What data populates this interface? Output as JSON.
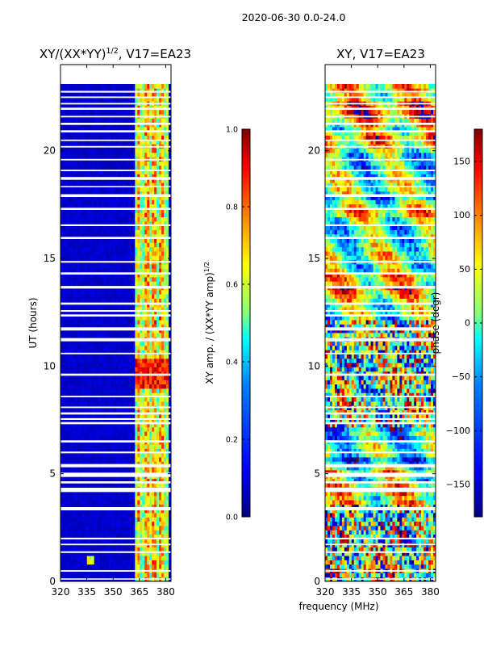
{
  "figure_title": "2020-06-30 0.0-24.0",
  "xlabel_shared": "frequency (MHz)",
  "colors": {
    "jet": [
      "#00007f",
      "#0000ff",
      "#007fff",
      "#00ffff",
      "#7fff7f",
      "#ffff00",
      "#ff7f00",
      "#ff0000",
      "#7f0000"
    ],
    "gap": "#ffffff",
    "axis": "#000000"
  },
  "chart_data": [
    {
      "type": "heatmap",
      "title_main": "XY/(XX*YY)",
      "title_sup": "1/2",
      "title_rest": ", V17=EA23",
      "xlabel": "",
      "ylabel": "UT (hours)",
      "xlim": [
        320,
        383
      ],
      "ylim": [
        0,
        24
      ],
      "x_ticks": [
        320,
        335,
        350,
        365,
        380
      ],
      "y_ticks": [
        0,
        5,
        10,
        15,
        20
      ],
      "data_range_hours": [
        0,
        23.1
      ],
      "colorbar": {
        "label_main": "XY amp. / (XX*YY amp)",
        "label_sup": "1/2",
        "range": [
          0.0,
          1.0
        ],
        "ticks": [
          "0.0",
          "0.2",
          "0.4",
          "0.6",
          "0.8",
          "1.0"
        ]
      },
      "features": [
        {
          "description": "bright amplitude band",
          "freq_range_MHz": [
            362,
            382
          ]
        },
        {
          "description": "strong peak",
          "freq_MHz": 337,
          "ut_hours": 0.9
        },
        {
          "description": "red high-amplitude patch",
          "freq_range_MHz": [
            362,
            380
          ],
          "ut_range_hours": [
            8.8,
            10.3
          ]
        }
      ]
    },
    {
      "type": "heatmap",
      "title_main": "XY, V17=EA23",
      "xlabel": "frequency (MHz)",
      "ylabel": "",
      "xlim": [
        320,
        383
      ],
      "ylim": [
        0,
        24
      ],
      "x_ticks": [
        320,
        335,
        350,
        365,
        380
      ],
      "y_ticks": [
        0,
        5,
        10,
        15,
        20
      ],
      "data_range_hours": [
        0,
        23.1
      ],
      "colorbar": {
        "label_main": "phase (degr)",
        "range": [
          -180,
          180
        ],
        "ticks": [
          "−150",
          "−100",
          "−50",
          "0",
          "50",
          "100",
          "150"
        ]
      }
    }
  ],
  "gap_hours": [
    [
      0.08,
      0.14
    ],
    [
      0.45,
      0.52
    ],
    [
      1.32,
      1.4
    ],
    [
      1.68,
      1.75
    ],
    [
      1.95,
      2.03
    ],
    [
      3.3,
      3.45
    ],
    [
      4.15,
      4.35
    ],
    [
      4.55,
      4.65
    ],
    [
      4.85,
      5.05
    ],
    [
      5.3,
      5.45
    ],
    [
      5.95,
      6.03
    ],
    [
      6.45,
      6.55
    ],
    [
      7.3,
      7.4
    ],
    [
      7.5,
      7.58
    ],
    [
      7.75,
      7.85
    ],
    [
      8.05,
      8.12
    ],
    [
      8.55,
      8.62
    ],
    [
      9.55,
      9.65
    ],
    [
      10.55,
      10.62
    ],
    [
      11.15,
      11.3
    ],
    [
      11.65,
      11.8
    ],
    [
      12.3,
      12.4
    ],
    [
      12.52,
      12.6
    ],
    [
      12.85,
      12.95
    ],
    [
      13.6,
      13.72
    ],
    [
      14.25,
      14.35
    ],
    [
      14.8,
      14.88
    ],
    [
      15.9,
      16.0
    ],
    [
      16.5,
      16.58
    ],
    [
      17.25,
      17.35
    ],
    [
      17.85,
      17.98
    ],
    [
      18.3,
      18.36
    ],
    [
      18.65,
      18.78
    ],
    [
      19.05,
      19.12
    ],
    [
      19.55,
      19.62
    ],
    [
      20.15,
      20.22
    ],
    [
      20.45,
      20.52
    ],
    [
      20.85,
      20.95
    ],
    [
      21.2,
      21.3
    ],
    [
      21.55,
      21.62
    ],
    [
      21.9,
      22.0
    ],
    [
      22.15,
      22.22
    ],
    [
      22.45,
      22.52
    ],
    [
      22.7,
      22.78
    ]
  ]
}
